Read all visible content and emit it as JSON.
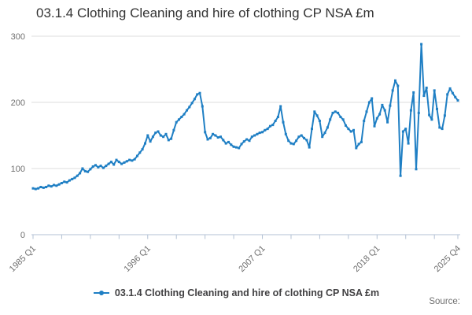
{
  "title": "03.1.4 Clothing Cleaning and hire of clothing CP NSA £m",
  "source_label": "Source:",
  "legend": {
    "label": "03.1.4 Clothing Cleaning and hire of clothing CP NSA £m"
  },
  "colors": {
    "line": "#1f7fc4",
    "grid": "#dcdcdc",
    "axis": "#b3c1d4",
    "axis_text": "#6f6f6f",
    "title_text": "#333333",
    "legend_text": "#414042"
  },
  "chart_data": {
    "type": "line",
    "title": "03.1.4 Clothing Cleaning and hire of clothing CP NSA £m",
    "ylabel": "",
    "xlabel": "",
    "ylim": [
      0,
      300
    ],
    "y_ticks": [
      0,
      100,
      200,
      300
    ],
    "grid": "horizontal",
    "legend_position": "bottom",
    "frequency": "quarterly",
    "x_start": "1985 Q1",
    "x_end": "2025 Q4",
    "total_quarters": 164,
    "x_tick_labels": [
      "1985 Q1",
      "1996 Q1",
      "2007 Q1",
      "2018 Q1",
      "2025 Q4"
    ],
    "x_tick_quarter_indices": [
      0,
      44,
      88,
      132,
      163
    ],
    "minor_tick_indices": [
      11,
      22,
      33,
      55,
      66,
      77,
      99,
      110,
      121,
      143,
      154
    ],
    "series": [
      {
        "name": "03.1.4 Clothing Cleaning and hire of clothing CP NSA £m",
        "values": [
          70,
          69,
          70,
          72,
          71,
          72,
          74,
          73,
          75,
          74,
          76,
          78,
          80,
          79,
          82,
          84,
          86,
          89,
          93,
          100,
          96,
          95,
          99,
          103,
          105,
          102,
          104,
          101,
          104,
          107,
          110,
          106,
          113,
          110,
          107,
          109,
          111,
          113,
          112,
          114,
          119,
          124,
          129,
          138,
          150,
          141,
          148,
          154,
          156,
          150,
          148,
          152,
          143,
          145,
          158,
          170,
          174,
          178,
          182,
          188,
          193,
          199,
          205,
          212,
          214,
          194,
          155,
          144,
          146,
          152,
          150,
          147,
          148,
          143,
          138,
          140,
          136,
          133,
          132,
          131,
          137,
          141,
          144,
          142,
          148,
          150,
          152,
          154,
          155,
          158,
          160,
          164,
          166,
          172,
          178,
          194,
          170,
          152,
          142,
          138,
          137,
          142,
          148,
          150,
          146,
          143,
          132,
          160,
          186,
          180,
          172,
          148,
          154,
          162,
          174,
          184,
          186,
          184,
          178,
          174,
          165,
          160,
          156,
          158,
          131,
          137,
          140,
          172,
          186,
          200,
          206,
          164,
          176,
          182,
          196,
          188,
          170,
          195,
          218,
          233,
          225,
          89,
          156,
          160,
          138,
          188,
          215,
          99,
          184,
          288,
          210,
          222,
          181,
          174,
          218,
          190,
          162,
          160,
          180,
          212,
          221,
          214,
          208,
          203
        ]
      }
    ]
  }
}
